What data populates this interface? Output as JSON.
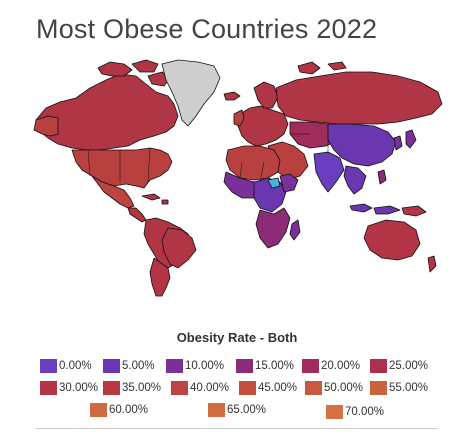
{
  "title": "Most Obese Countries 2022",
  "legend": {
    "title": "Obesity Rate - Both",
    "items": [
      {
        "label": "0.00%",
        "color": "#6a3fbf"
      },
      {
        "label": "5.00%",
        "color": "#6b37b0"
      },
      {
        "label": "10.00%",
        "color": "#7b2f9a"
      },
      {
        "label": "15.00%",
        "color": "#8e2b79"
      },
      {
        "label": "20.00%",
        "color": "#a02c5c"
      },
      {
        "label": "25.00%",
        "color": "#ad2f4f"
      },
      {
        "label": "30.00%",
        "color": "#b23445"
      },
      {
        "label": "35.00%",
        "color": "#b73a42"
      },
      {
        "label": "40.00%",
        "color": "#bd4440"
      },
      {
        "label": "45.00%",
        "color": "#c24e3d"
      },
      {
        "label": "50.00%",
        "color": "#c85a3d"
      },
      {
        "label": "55.00%",
        "color": "#cc623d"
      },
      {
        "label": "60.00%",
        "color": "#d0693f"
      },
      {
        "label": "65.00%",
        "color": "#d26d41"
      },
      {
        "label": "70.00%",
        "color": "#d57244"
      }
    ]
  },
  "colors": {
    "no_data": "#cfcfcf",
    "highlight": "#48b3e0"
  }
}
